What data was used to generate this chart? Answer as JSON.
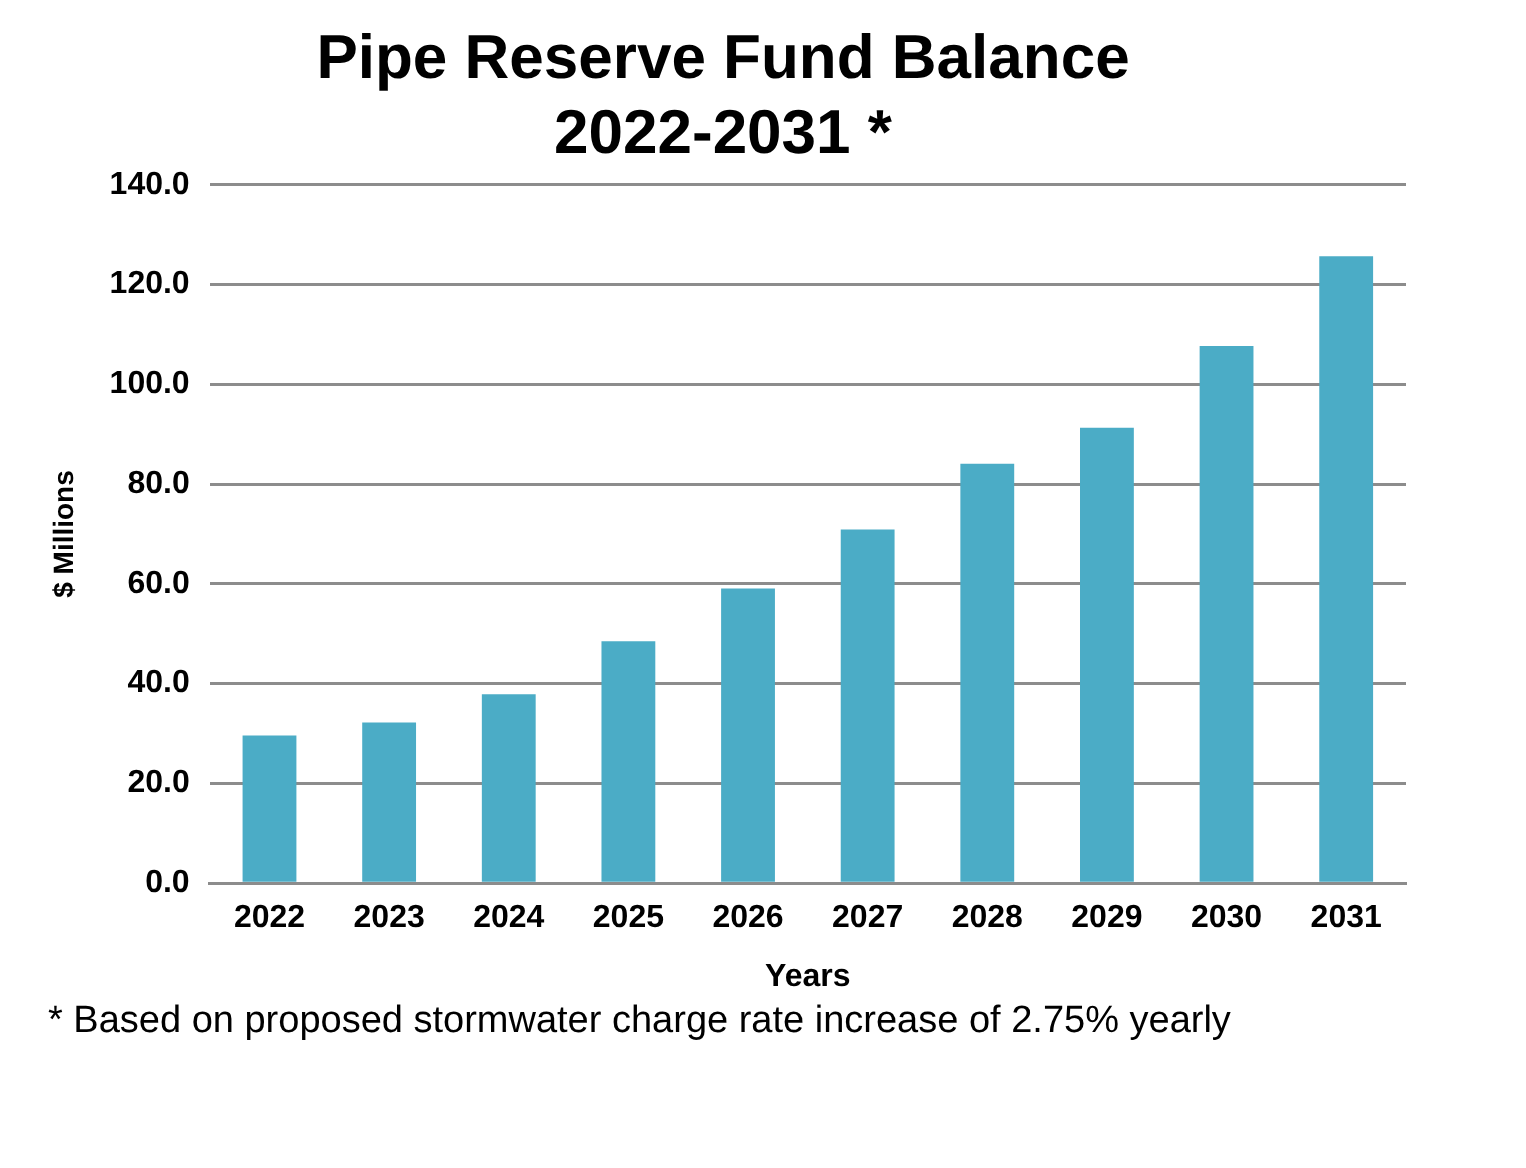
{
  "chart_data": {
    "type": "bar",
    "title": "Pipe Reserve Fund Balance\n2022-2031 *",
    "xlabel": "Years",
    "ylabel": "$ Millions",
    "categories": [
      "2022",
      "2023",
      "2024",
      "2025",
      "2026",
      "2027",
      "2028",
      "2029",
      "2030",
      "2031"
    ],
    "values": [
      29.6,
      32.2,
      37.9,
      48.5,
      59.1,
      70.9,
      84.1,
      91.3,
      107.7,
      125.7
    ],
    "color": "#4bacc6",
    "ylim": [
      0,
      140
    ],
    "yticks": [
      {
        "value": 0,
        "label": "0.0"
      },
      {
        "value": 20,
        "label": "20.0"
      },
      {
        "value": 40,
        "label": "40.0"
      },
      {
        "value": 60,
        "label": "60.0"
      },
      {
        "value": 80,
        "label": "80.0"
      },
      {
        "value": 100,
        "label": "100.0"
      },
      {
        "value": 120,
        "label": "120.0"
      },
      {
        "value": 140,
        "label": "140.0"
      }
    ],
    "grid": "y",
    "legend": false,
    "annotations": [
      "* Based on proposed stormwater charge rate increase of 2.75% yearly"
    ]
  }
}
